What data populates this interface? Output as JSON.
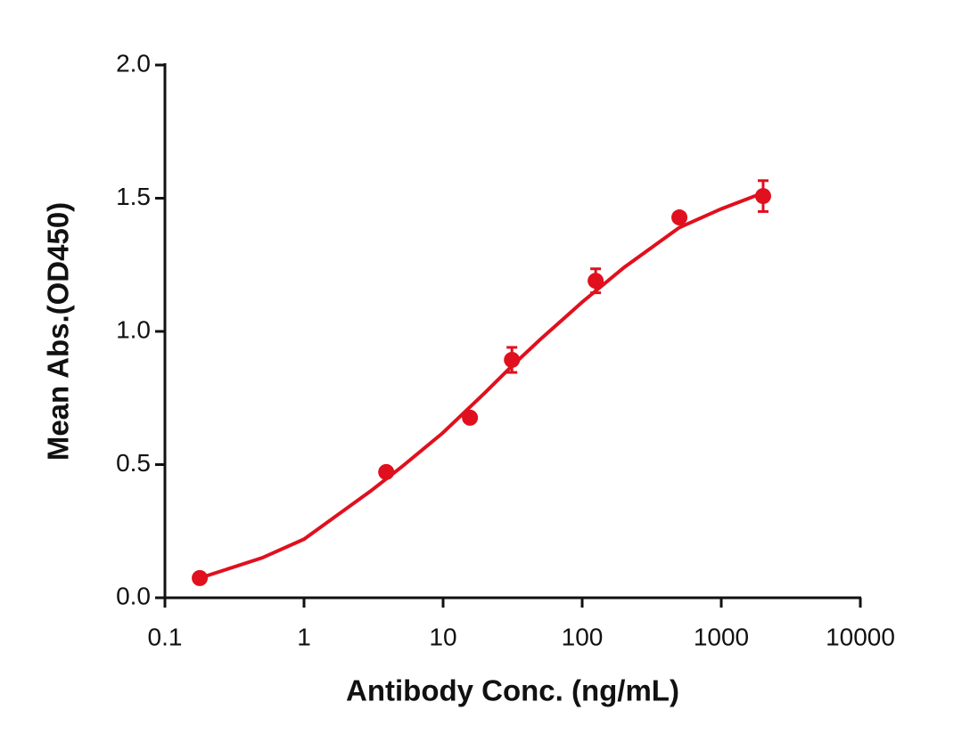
{
  "chart_data": {
    "type": "scatter",
    "x_label": "Antibody Conc. (ng/mL)",
    "y_label": "Mean Abs.(OD450)",
    "x": [
      0.178,
      3.9,
      15.6,
      31.25,
      125,
      500,
      2000
    ],
    "series": [
      {
        "color": "#e0101e",
        "values": [
          0.074,
          0.472,
          0.676,
          0.893,
          1.19,
          1.428,
          1.508
        ],
        "errors": [
          0.008,
          0.008,
          0.01,
          0.047,
          0.045,
          0.012,
          0.058
        ]
      }
    ],
    "fit_curve": {
      "color": "#e0101e",
      "x": [
        0.178,
        0.5,
        1,
        3,
        5,
        10,
        20,
        31.25,
        50,
        100,
        200,
        500,
        1000,
        2000
      ],
      "values": [
        0.074,
        0.15,
        0.22,
        0.4,
        0.49,
        0.62,
        0.77,
        0.87,
        0.97,
        1.11,
        1.24,
        1.39,
        1.46,
        1.52
      ]
    },
    "xlog": true,
    "xlim": [
      0.1,
      10000
    ],
    "xticks": [
      0.1,
      1,
      10,
      100,
      1000,
      10000
    ],
    "ylim": [
      0,
      2
    ],
    "yticks": [
      {
        "value": 0,
        "label": "0.0"
      },
      0.5,
      {
        "value": 1,
        "label": "1.0"
      },
      1.5,
      {
        "value": 2,
        "label": "2.0"
      }
    ]
  }
}
